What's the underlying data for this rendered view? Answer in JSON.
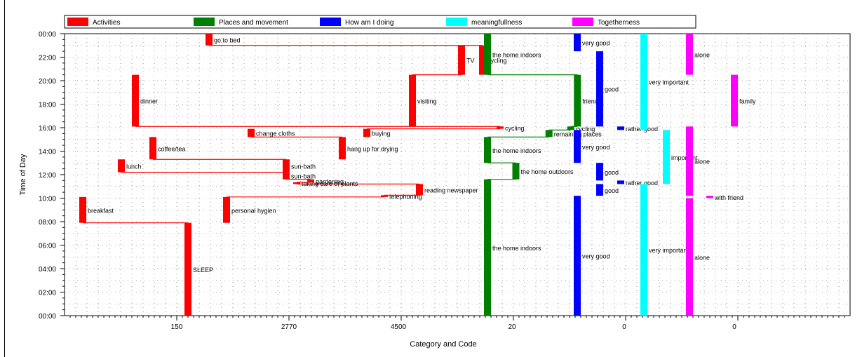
{
  "chart_data": {
    "type": "timeline",
    "title": "",
    "xlabel": "Category and Code",
    "ylabel": "Time of Day",
    "x_tick_labels": [
      "150",
      "2770",
      "4500",
      "20",
      "0",
      "0"
    ],
    "y_tick_labels": [
      "00:00",
      "02:00",
      "04:00",
      "06:00",
      "08:00",
      "10:00",
      "12:00",
      "14:00",
      "16:00",
      "18:00",
      "20:00",
      "22:00",
      "00:00"
    ],
    "grid": true,
    "legend_position": "top",
    "colors": {
      "activities": "#ff0000",
      "places": "#008000",
      "how": "#0000ff",
      "meaning": "#00ffff",
      "together": "#ff00ff"
    },
    "legend": [
      {
        "key": "activities",
        "label": "Activities"
      },
      {
        "key": "places",
        "label": "Places and movement"
      },
      {
        "key": "how",
        "label": "How am I doing"
      },
      {
        "key": "meaning",
        "label": "meaningfullness"
      },
      {
        "key": "together",
        "label": "Togetherness"
      }
    ],
    "series": [
      {
        "key": "activities",
        "segments": [
          {
            "label": "SLEEP",
            "col": 150,
            "start": 0.0,
            "end": 7.9
          },
          {
            "label": "breakfast",
            "col": 0,
            "start": 7.9,
            "end": 10.1
          },
          {
            "label": "personal hygien",
            "col": 205,
            "start": 7.9,
            "end": 10.1
          },
          {
            "label": "telephoning",
            "col": 430,
            "start": 10.1,
            "end": 10.25
          },
          {
            "label": "reading newspaper",
            "col": 480,
            "start": 10.25,
            "end": 11.2
          },
          {
            "label": "taking care of plants",
            "col": 305,
            "start": 11.2,
            "end": 11.35
          },
          {
            "label": "gardening",
            "col": 325,
            "start": 11.35,
            "end": 11.6
          },
          {
            "label": "sun-bath",
            "col": 290,
            "start": 11.6,
            "end": 12.2
          },
          {
            "label": "lunch",
            "col": 55,
            "start": 12.2,
            "end": 13.3
          },
          {
            "label": "sun-bath",
            "col": 290,
            "start": 12.2,
            "end": 13.3
          },
          {
            "label": "coffee/tea",
            "col": 100,
            "start": 13.3,
            "end": 15.2
          },
          {
            "label": "hang up for drying",
            "col": 370,
            "start": 13.3,
            "end": 15.2
          },
          {
            "label": "change cloths",
            "col": 240,
            "start": 15.2,
            "end": 15.9
          },
          {
            "label": "buying",
            "col": 405,
            "start": 15.2,
            "end": 15.9
          },
          {
            "label": "cycling",
            "col": 595,
            "start": 15.9,
            "end": 16.1
          },
          {
            "label": "dinner",
            "col": 75,
            "start": 16.1,
            "end": 20.5
          },
          {
            "label": "visiting",
            "col": 470,
            "start": 16.1,
            "end": 20.5
          },
          {
            "label": "TV",
            "col": 540,
            "start": 20.5,
            "end": 23.0
          },
          {
            "label": "cycling",
            "col": 570,
            "start": 20.5,
            "end": 23.0
          },
          {
            "label": "go to bed",
            "col": 180,
            "start": 23.0,
            "end": 24.0
          }
        ]
      },
      {
        "key": "places",
        "segments": [
          {
            "label": "the home indoors",
            "col": 600,
            "start": 0.0,
            "end": 11.6
          },
          {
            "label": "the home outdoors",
            "col": 630,
            "start": 11.6,
            "end": 13.0
          },
          {
            "label": "the home indoors",
            "col": 600,
            "start": 13.0,
            "end": 15.2
          },
          {
            "label": "remaining places",
            "col": 665,
            "start": 15.2,
            "end": 15.8
          },
          {
            "label": "cycling",
            "col": 688,
            "start": 15.8,
            "end": 16.1
          },
          {
            "label": "friends",
            "col": 695,
            "start": 16.1,
            "end": 20.5
          },
          {
            "label": "the home indoors",
            "col": 600,
            "start": 20.5,
            "end": 24.0
          }
        ]
      },
      {
        "key": "how",
        "segments": [
          {
            "label": "very good",
            "col": 0,
            "start": 0.0,
            "end": 10.2
          },
          {
            "label": "good",
            "col": 1,
            "start": 10.2,
            "end": 11.2
          },
          {
            "label": "rather good",
            "col": 2,
            "start": 11.2,
            "end": 11.5
          },
          {
            "label": "good",
            "col": 1,
            "start": 11.5,
            "end": 13.0
          },
          {
            "label": "very good",
            "col": 0,
            "start": 13.0,
            "end": 15.8
          },
          {
            "label": "rather good",
            "col": 2,
            "start": 15.8,
            "end": 16.1
          },
          {
            "label": "good",
            "col": 1,
            "start": 16.1,
            "end": 22.5
          },
          {
            "label": "very good",
            "col": 0,
            "start": 22.5,
            "end": 24.0
          }
        ]
      },
      {
        "key": "meaning",
        "segments": [
          {
            "label": "very important",
            "col": 0,
            "start": 0.0,
            "end": 11.2
          },
          {
            "label": "important",
            "col": 1,
            "start": 11.2,
            "end": 15.8
          },
          {
            "label": "very important",
            "col": 0,
            "start": 15.8,
            "end": 24.0
          }
        ]
      },
      {
        "key": "together",
        "segments": [
          {
            "label": "alone",
            "col": 0,
            "start": 0.0,
            "end": 10.0
          },
          {
            "label": "with friend",
            "col": 1,
            "start": 10.0,
            "end": 10.2
          },
          {
            "label": "alone",
            "col": 0,
            "start": 10.2,
            "end": 16.1
          },
          {
            "label": "family",
            "col": 2,
            "start": 16.1,
            "end": 20.5
          },
          {
            "label": "alone",
            "col": 0,
            "start": 20.5,
            "end": 24.0
          }
        ]
      }
    ]
  }
}
